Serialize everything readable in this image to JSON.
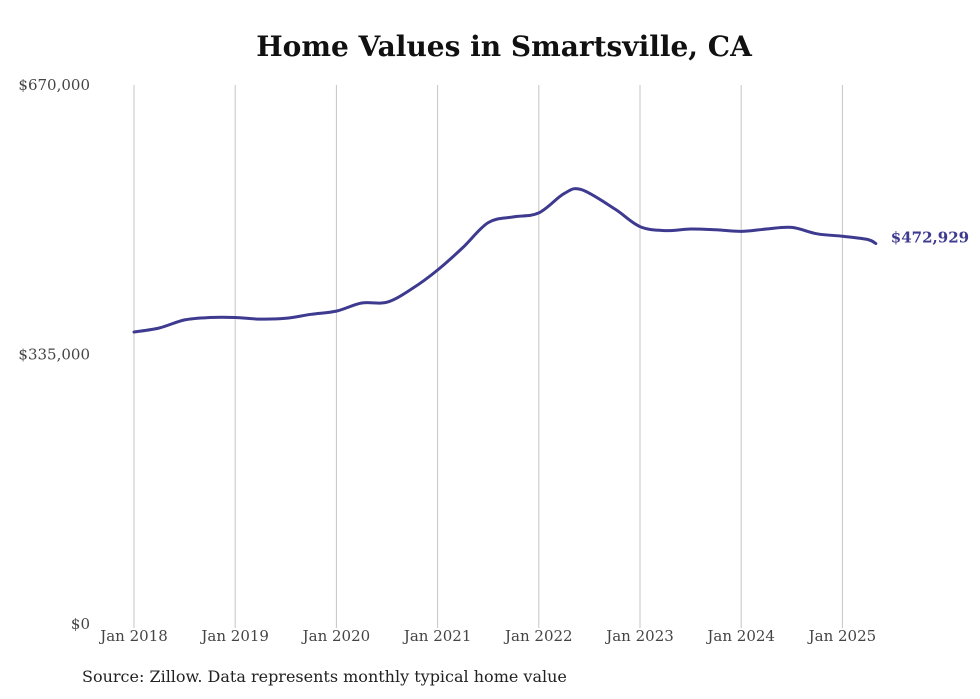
{
  "chart_data": {
    "type": "line",
    "title": "Home Values in Smartsville, CA",
    "xlabel": "",
    "ylabel": "",
    "ylim": [
      0,
      670000
    ],
    "y_ticks": [
      {
        "value": 670000,
        "label": "$670,000"
      },
      {
        "value": 335000,
        "label": "$335,000"
      },
      {
        "value": 0,
        "label": "$0"
      }
    ],
    "x_ticks": [
      {
        "year": 2018,
        "label": "Jan 2018"
      },
      {
        "year": 2019,
        "label": "Jan 2019"
      },
      {
        "year": 2020,
        "label": "Jan 2020"
      },
      {
        "year": 2021,
        "label": "Jan 2021"
      },
      {
        "year": 2022,
        "label": "Jan 2022"
      },
      {
        "year": 2023,
        "label": "Jan 2023"
      },
      {
        "year": 2024,
        "label": "Jan 2024"
      },
      {
        "year": 2025,
        "label": "Jan 2025"
      }
    ],
    "grid": {
      "vertical": true,
      "horizontal": false
    },
    "line_color": "#3d3a8f",
    "series": [
      {
        "values": [
          [
            2018.0,
            363000
          ],
          [
            2018.25,
            368000
          ],
          [
            2018.5,
            378000
          ],
          [
            2018.75,
            381000
          ],
          [
            2019.0,
            381000
          ],
          [
            2019.25,
            379000
          ],
          [
            2019.5,
            380000
          ],
          [
            2019.75,
            385000
          ],
          [
            2020.0,
            389000
          ],
          [
            2020.25,
            399000
          ],
          [
            2020.5,
            400000
          ],
          [
            2020.75,
            417000
          ],
          [
            2021.0,
            440000
          ],
          [
            2021.25,
            468000
          ],
          [
            2021.5,
            499000
          ],
          [
            2021.75,
            506000
          ],
          [
            2022.0,
            511000
          ],
          [
            2022.25,
            535000
          ],
          [
            2022.42,
            540000
          ],
          [
            2022.75,
            516000
          ],
          [
            2023.0,
            494000
          ],
          [
            2023.25,
            489000
          ],
          [
            2023.5,
            491000
          ],
          [
            2023.75,
            490000
          ],
          [
            2024.0,
            488000
          ],
          [
            2024.25,
            491000
          ],
          [
            2024.5,
            493000
          ],
          [
            2024.75,
            485000
          ],
          [
            2025.0,
            482000
          ],
          [
            2025.25,
            478000
          ],
          [
            2025.33,
            472929
          ]
        ]
      }
    ],
    "end_label": "$472,929"
  },
  "footer": {
    "source": "Source: Zillow. Data represents monthly typical home value"
  }
}
